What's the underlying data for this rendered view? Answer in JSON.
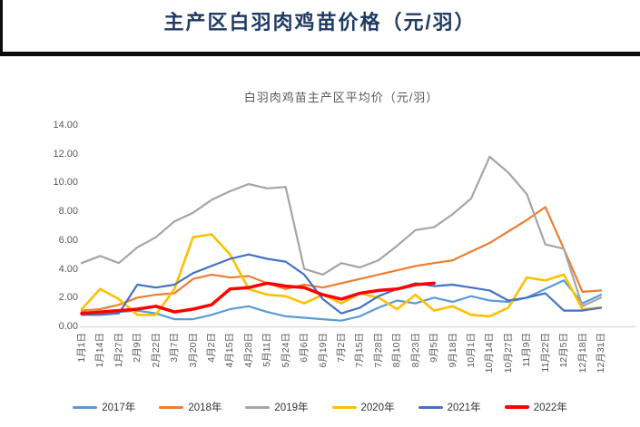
{
  "header": {
    "title": "主产区白羽肉鸡苗价格（元/羽）"
  },
  "colors": {
    "title_text": "#1F3A63",
    "rule": "#0d0d0d",
    "chart_title_text": "#595959",
    "axis_text": "#595959",
    "axis_line": "#D9D9D9"
  },
  "chart_data": {
    "type": "line",
    "title": "白羽肉鸡苗主产区平均价（元/羽）",
    "xlabel": "",
    "ylabel": "",
    "ylim": [
      0,
      14
    ],
    "ytick_labels": [
      "0.00",
      "2.00",
      "4.00",
      "6.00",
      "8.00",
      "10.00",
      "12.00",
      "14.00"
    ],
    "grid": false,
    "legend_position": "bottom",
    "categories": [
      "1月1日",
      "1月14日",
      "1月27日",
      "2月9日",
      "2月22日",
      "3月7日",
      "3月20日",
      "4月2日",
      "4月15日",
      "4月28日",
      "5月11日",
      "5月24日",
      "6月6日",
      "6月19日",
      "7月2日",
      "7月15日",
      "7月28日",
      "8月10日",
      "8月23日",
      "9月5日",
      "9月18日",
      "10月1日",
      "10月14日",
      "10月27日",
      "11月9日",
      "11月22日",
      "12月5日",
      "12月18日",
      "12月31日"
    ],
    "series": [
      {
        "name": "2017年",
        "color": "#5B9BD5",
        "stroke_width": 2.2,
        "values": [
          1.0,
          0.9,
          1.0,
          1.1,
          0.9,
          0.5,
          0.5,
          0.8,
          1.2,
          1.4,
          1.0,
          0.7,
          0.6,
          0.5,
          0.4,
          0.7,
          1.3,
          1.8,
          1.6,
          2.0,
          1.7,
          2.1,
          1.8,
          1.7,
          2.0,
          2.6,
          3.2,
          1.6,
          2.2
        ]
      },
      {
        "name": "2018年",
        "color": "#ED7D31",
        "stroke_width": 2.2,
        "values": [
          1.1,
          1.2,
          1.5,
          2.0,
          2.2,
          2.3,
          3.3,
          3.6,
          3.4,
          3.5,
          3.0,
          2.6,
          2.9,
          2.7,
          3.0,
          3.3,
          3.6,
          3.9,
          4.2,
          4.4,
          4.6,
          5.2,
          5.8,
          6.6,
          7.4,
          8.3,
          5.4,
          2.4,
          2.5
        ]
      },
      {
        "name": "2019年",
        "color": "#A5A5A5",
        "stroke_width": 2.2,
        "values": [
          4.4,
          4.9,
          4.4,
          5.5,
          6.2,
          7.3,
          7.9,
          8.8,
          9.4,
          9.9,
          9.6,
          9.7,
          4.0,
          3.6,
          4.4,
          4.1,
          4.6,
          5.6,
          6.7,
          6.9,
          7.8,
          8.9,
          11.8,
          10.7,
          9.2,
          5.7,
          5.4,
          1.4,
          2.0
        ]
      },
      {
        "name": "2020年",
        "color": "#FFC000",
        "stroke_width": 2.6,
        "values": [
          1.2,
          2.6,
          1.9,
          0.8,
          0.8,
          2.6,
          6.2,
          6.4,
          5.0,
          2.6,
          2.2,
          2.1,
          1.6,
          2.2,
          1.6,
          2.3,
          2.0,
          1.2,
          2.2,
          1.1,
          1.4,
          0.8,
          0.7,
          1.3,
          3.4,
          3.2,
          3.6,
          1.2,
          1.3
        ]
      },
      {
        "name": "2021年",
        "color": "#4472C4",
        "stroke_width": 2.2,
        "values": [
          0.8,
          0.8,
          0.9,
          2.9,
          2.7,
          2.9,
          3.7,
          4.2,
          4.7,
          5.0,
          4.7,
          4.5,
          3.6,
          1.9,
          0.9,
          1.3,
          2.1,
          2.6,
          3.0,
          2.8,
          2.9,
          2.7,
          2.5,
          1.8,
          2.0,
          2.3,
          1.1,
          1.1,
          1.3
        ]
      },
      {
        "name": "2022年",
        "color": "#FF0000",
        "stroke_width": 3.5,
        "values": [
          0.9,
          1.0,
          1.1,
          1.2,
          1.4,
          1.0,
          1.2,
          1.5,
          2.6,
          2.7,
          3.0,
          2.8,
          2.7,
          2.2,
          1.9,
          2.3,
          2.5,
          2.6,
          2.9,
          3.0,
          null,
          null,
          null,
          null,
          null,
          null,
          null,
          null,
          null
        ]
      }
    ]
  }
}
